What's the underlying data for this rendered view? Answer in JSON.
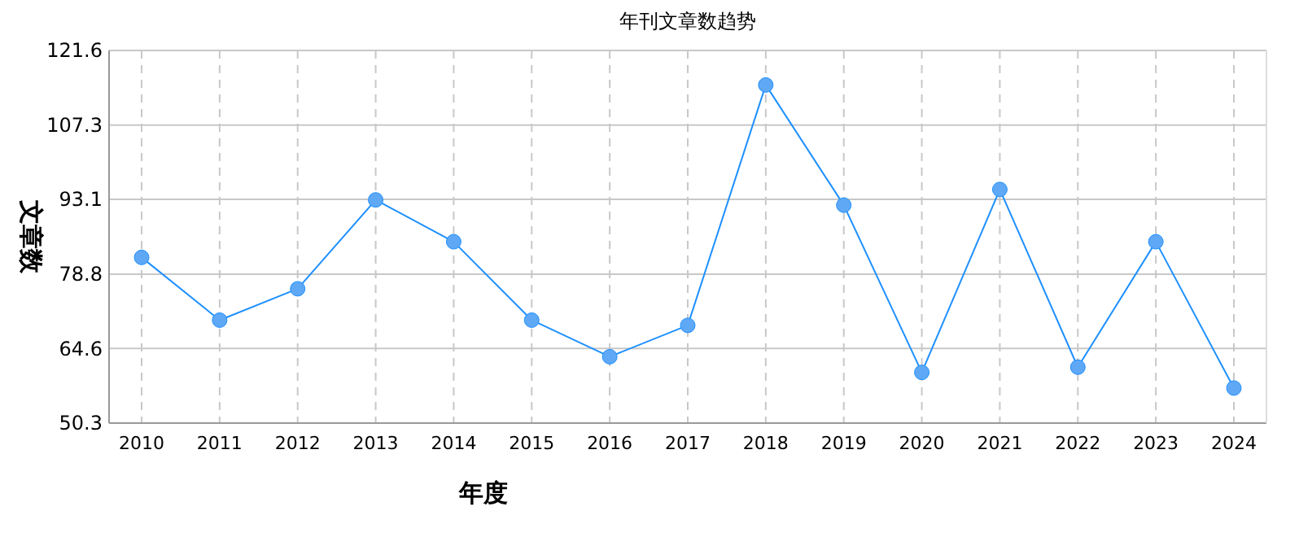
{
  "chart_data": {
    "type": "line",
    "title": "年刊文章数趋势",
    "xlabel": "年度",
    "ylabel": "文章数",
    "categories": [
      "2010",
      "2011",
      "2012",
      "2013",
      "2014",
      "2015",
      "2016",
      "2017",
      "2018",
      "2019",
      "2020",
      "2021",
      "2022",
      "2023",
      "2024"
    ],
    "series": [
      {
        "color": "#1e90ff",
        "values": [
          82,
          70,
          76,
          93,
          85,
          70,
          63,
          69,
          115,
          92,
          60,
          95,
          61,
          85,
          57
        ]
      }
    ],
    "ylim": [
      50.3,
      121.6
    ],
    "yticks": [
      50.3,
      64.6,
      78.8,
      93.1,
      107.3,
      121.6
    ],
    "grid": true,
    "marker": "circle",
    "line_style": "solid"
  }
}
